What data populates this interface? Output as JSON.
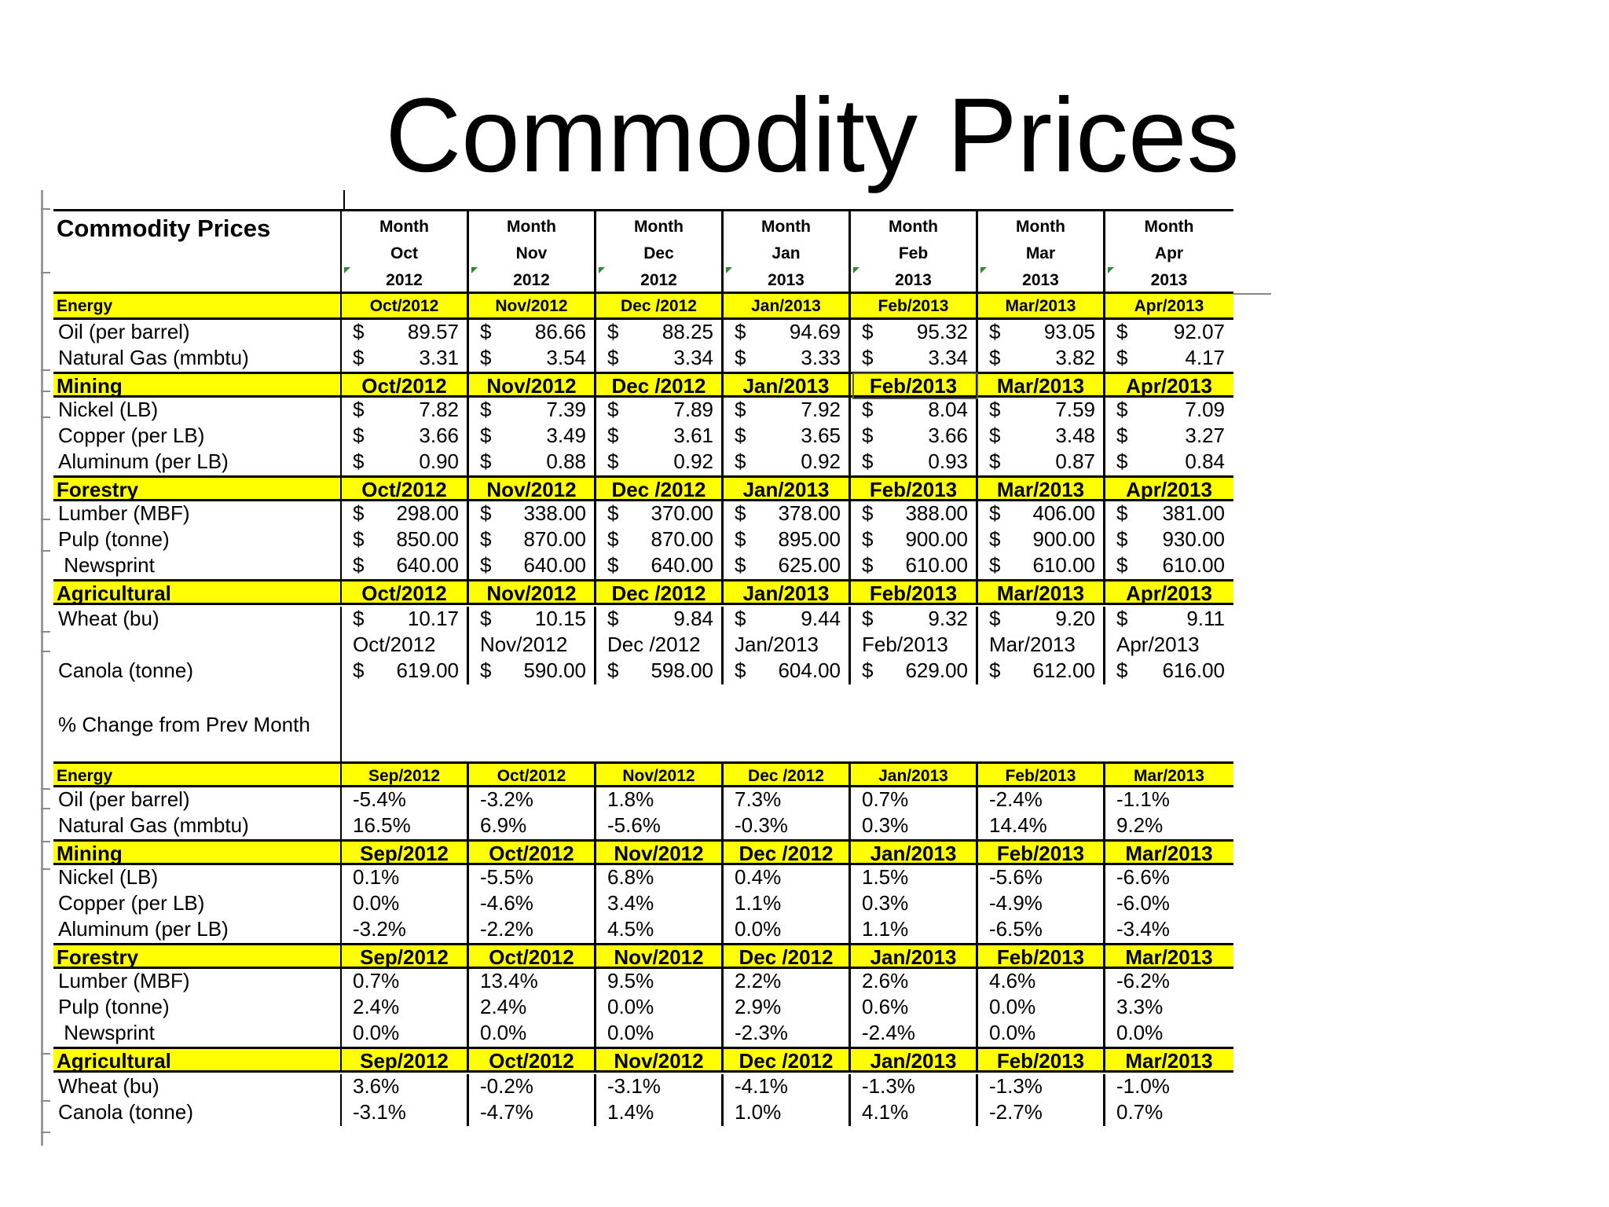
{
  "title": "Commodity Prices",
  "table_title": "Commodity Prices",
  "header_line1": [
    "Month",
    "Month",
    "Month",
    "Month",
    "Month",
    "Month",
    "Month"
  ],
  "header_line2": [
    "Oct",
    "Nov",
    "Dec",
    "Jan",
    "Feb",
    "Mar",
    "Apr"
  ],
  "header_line3": [
    "2012",
    "2012",
    "2012",
    "2013",
    "2013",
    "2013",
    "2013"
  ],
  "prices": {
    "energy": {
      "label": "Energy",
      "months": [
        "Oct/2012",
        "Nov/2012",
        "Dec /2012",
        "Jan/2013",
        "Feb/2013",
        "Mar/2013",
        "Apr/2013"
      ]
    },
    "oil": {
      "label": "Oil (per barrel)",
      "values": [
        "89.57",
        "86.66",
        "88.25",
        "94.69",
        "95.32",
        "93.05",
        "92.07"
      ]
    },
    "gas": {
      "label": "Natural Gas (mmbtu)",
      "values": [
        "3.31",
        "3.54",
        "3.34",
        "3.33",
        "3.34",
        "3.82",
        "4.17"
      ]
    },
    "mining": {
      "label": "Mining",
      "months": [
        "Oct/2012",
        "Nov/2012",
        "Dec /2012",
        "Jan/2013",
        "Feb/2013",
        "Mar/2013",
        "Apr/2013"
      ]
    },
    "nickel": {
      "label": "Nickel (LB)",
      "values": [
        "7.82",
        "7.39",
        "7.89",
        "7.92",
        "8.04",
        "7.59",
        "7.09"
      ]
    },
    "copper": {
      "label": "Copper (per LB)",
      "values": [
        "3.66",
        "3.49",
        "3.61",
        "3.65",
        "3.66",
        "3.48",
        "3.27"
      ]
    },
    "aluminum": {
      "label": "Aluminum (per LB)",
      "values": [
        "0.90",
        "0.88",
        "0.92",
        "0.92",
        "0.93",
        "0.87",
        "0.84"
      ]
    },
    "forestry": {
      "label": "Forestry",
      "months": [
        "Oct/2012",
        "Nov/2012",
        "Dec /2012",
        "Jan/2013",
        "Feb/2013",
        "Mar/2013",
        "Apr/2013"
      ]
    },
    "lumber": {
      "label": "Lumber (MBF)",
      "values": [
        "298.00",
        "338.00",
        "370.00",
        "378.00",
        "388.00",
        "406.00",
        "381.00"
      ]
    },
    "pulp": {
      "label": "Pulp (tonne)",
      "values": [
        "850.00",
        "870.00",
        "870.00",
        "895.00",
        "900.00",
        "900.00",
        "930.00"
      ]
    },
    "newsprint": {
      "label": " Newsprint",
      "values": [
        "640.00",
        "640.00",
        "640.00",
        "625.00",
        "610.00",
        "610.00",
        "610.00"
      ]
    },
    "agricultural": {
      "label": "Agricultural",
      "months": [
        "Oct/2012",
        "Nov/2012",
        "Dec /2012",
        "Jan/2013",
        "Feb/2013",
        "Mar/2013",
        "Apr/2013"
      ]
    },
    "wheat": {
      "label": "Wheat (bu)",
      "values": [
        "10.17",
        "10.15",
        "9.84",
        "9.44",
        "9.32",
        "9.20",
        "9.11"
      ]
    },
    "plain_months": [
      "Oct/2012",
      "Nov/2012",
      "Dec /2012",
      "Jan/2013",
      "Feb/2013",
      "Mar/2013",
      "Apr/2013"
    ],
    "canola": {
      "label": "Canola (tonne)",
      "values": [
        "619.00",
        "590.00",
        "598.00",
        "604.00",
        "629.00",
        "612.00",
        "616.00"
      ]
    }
  },
  "dollar_sign": "$",
  "pct_title": "% Change from Prev Month",
  "changes": {
    "energy": {
      "label": "Energy",
      "months": [
        "Sep/2012",
        "Oct/2012",
        "Nov/2012",
        "Dec /2012",
        "Jan/2013",
        "Feb/2013",
        "Mar/2013"
      ]
    },
    "oil": {
      "label": "Oil (per barrel)",
      "values": [
        "-5.4%",
        "-3.2%",
        "1.8%",
        "7.3%",
        "0.7%",
        "-2.4%",
        "-1.1%"
      ]
    },
    "gas": {
      "label": "Natural Gas (mmbtu)",
      "values": [
        "16.5%",
        "6.9%",
        "-5.6%",
        "-0.3%",
        "0.3%",
        "14.4%",
        "9.2%"
      ]
    },
    "mining": {
      "label": "Mining",
      "months": [
        "Sep/2012",
        "Oct/2012",
        "Nov/2012",
        "Dec /2012",
        "Jan/2013",
        "Feb/2013",
        "Mar/2013"
      ]
    },
    "nickel": {
      "label": "Nickel (LB)",
      "values": [
        "0.1%",
        "-5.5%",
        "6.8%",
        "0.4%",
        "1.5%",
        "-5.6%",
        "-6.6%"
      ]
    },
    "copper": {
      "label": "Copper (per LB)",
      "values": [
        "0.0%",
        "-4.6%",
        "3.4%",
        "1.1%",
        "0.3%",
        "-4.9%",
        "-6.0%"
      ]
    },
    "aluminum": {
      "label": "Aluminum (per LB)",
      "values": [
        "-3.2%",
        "-2.2%",
        "4.5%",
        "0.0%",
        "1.1%",
        "-6.5%",
        "-3.4%"
      ]
    },
    "forestry": {
      "label": "Forestry",
      "months": [
        "Sep/2012",
        "Oct/2012",
        "Nov/2012",
        "Dec /2012",
        "Jan/2013",
        "Feb/2013",
        "Mar/2013"
      ]
    },
    "lumber": {
      "label": "Lumber (MBF)",
      "values": [
        "0.7%",
        "13.4%",
        "9.5%",
        "2.2%",
        "2.6%",
        "4.6%",
        "-6.2%"
      ]
    },
    "pulp": {
      "label": "Pulp (tonne)",
      "values": [
        "2.4%",
        "2.4%",
        "0.0%",
        "2.9%",
        "0.6%",
        "0.0%",
        "3.3%"
      ]
    },
    "newsprint": {
      "label": " Newsprint",
      "values": [
        "0.0%",
        "0.0%",
        "0.0%",
        "-2.3%",
        "-2.4%",
        "0.0%",
        "0.0%"
      ]
    },
    "agricultural": {
      "label": "Agricultural",
      "months": [
        "Sep/2012",
        "Oct/2012",
        "Nov/2012",
        "Dec /2012",
        "Jan/2013",
        "Feb/2013",
        "Mar/2013"
      ]
    },
    "wheat": {
      "label": "Wheat (bu)",
      "values": [
        "3.6%",
        "-0.2%",
        "-3.1%",
        "-4.1%",
        "-1.3%",
        "-1.3%",
        "-1.0%"
      ]
    },
    "canola": {
      "label": "Canola (tonne)",
      "values": [
        "-3.1%",
        "-4.7%",
        "1.4%",
        "1.0%",
        "4.1%",
        "-2.7%",
        "0.7%"
      ]
    }
  },
  "colors": {
    "section_fill": "#ffff00",
    "grid": "#000000"
  }
}
